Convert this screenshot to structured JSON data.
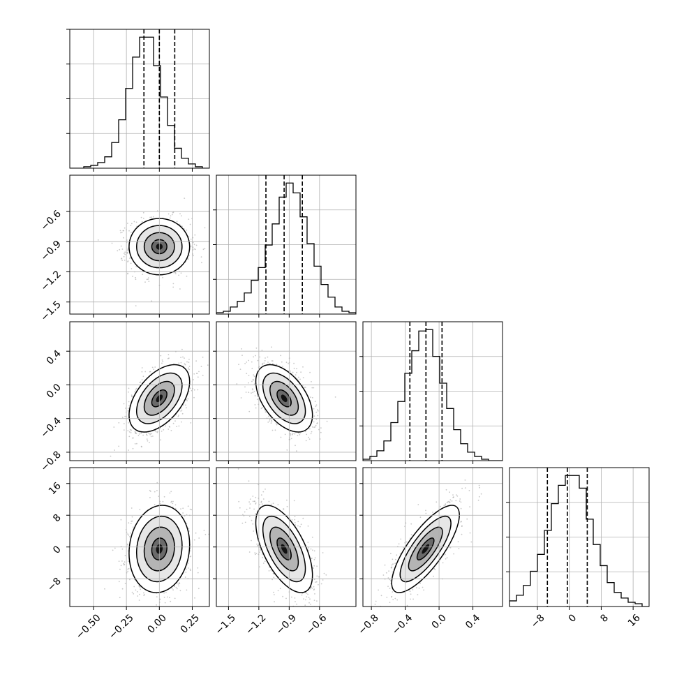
{
  "chart_data": {
    "type": "corner",
    "grid": true,
    "parameters": [
      {
        "index": 0,
        "range": [
          -0.68,
          0.38
        ],
        "ticks": [
          -0.5,
          -0.25,
          0.0,
          0.25
        ],
        "tick_labels": [
          "−0.50",
          "−0.25",
          "0.00",
          "0.25"
        ],
        "quantiles": [
          -0.117,
          0.0,
          0.117
        ]
      },
      {
        "index": 1,
        "range": [
          -1.62,
          -0.24
        ],
        "ticks": [
          -1.5,
          -1.2,
          -0.9,
          -0.6
        ],
        "tick_labels": [
          "−1.5",
          "−1.2",
          "−0.9",
          "−0.6"
        ],
        "quantiles": [
          -1.13,
          -0.95,
          -0.77
        ]
      },
      {
        "index": 2,
        "range": [
          -0.9,
          0.75
        ],
        "ticks": [
          -0.8,
          -0.4,
          0.0,
          0.4
        ],
        "tick_labels": [
          "−0.8",
          "−0.4",
          "0.0",
          "0.4"
        ],
        "quantiles": [
          -0.345,
          -0.155,
          0.035
        ]
      },
      {
        "index": 3,
        "range": [
          -15.0,
          20.0
        ],
        "ticks": [
          -8,
          0,
          8,
          16
        ],
        "tick_labels": [
          "−8",
          "0",
          "8",
          "16"
        ],
        "quantiles": [
          -5.5,
          -0.5,
          4.5
        ]
      }
    ],
    "histograms": [
      {
        "param": 0,
        "bin_edges_range": [
          -0.68,
          0.38
        ],
        "n_bins": 20,
        "counts": [
          0,
          0,
          1,
          2,
          4,
          8,
          18,
          34,
          56,
          78,
          92,
          92,
          72,
          50,
          30,
          14,
          7,
          3,
          1,
          0
        ]
      },
      {
        "param": 1,
        "bin_edges_range": [
          -1.62,
          -0.24
        ],
        "n_bins": 20,
        "counts": [
          1,
          2,
          5,
          9,
          15,
          24,
          33,
          49,
          64,
          83,
          93,
          86,
          69,
          50,
          34,
          21,
          12,
          5,
          2,
          1
        ]
      },
      {
        "param": 2,
        "bin_edges_range": [
          -0.9,
          0.75
        ],
        "n_bins": 20,
        "counts": [
          1,
          3,
          7,
          14,
          27,
          42,
          62,
          78,
          92,
          93,
          74,
          55,
          37,
          22,
          12,
          6,
          3,
          1,
          0,
          0
        ]
      },
      {
        "param": 3,
        "bin_edges_range": [
          -15.0,
          20.0
        ],
        "n_bins": 20,
        "counts": [
          4,
          8,
          15,
          25,
          37,
          54,
          73,
          86,
          93,
          93,
          84,
          62,
          44,
          29,
          17,
          10,
          6,
          3,
          2,
          0
        ]
      }
    ],
    "pairs": [
      {
        "x": 0,
        "y": 1,
        "mean": [
          0.0,
          -0.95
        ],
        "sigma": [
          0.115,
          0.14
        ],
        "corr": 0.0,
        "contour_levels": [
          0.5,
          1.0,
          1.5,
          2.0
        ]
      },
      {
        "x": 0,
        "y": 2,
        "mean": [
          0.0,
          -0.16
        ],
        "sigma": [
          0.115,
          0.2
        ],
        "corr": 0.5,
        "contour_levels": [
          0.5,
          1.0,
          1.5,
          2.0
        ]
      },
      {
        "x": 1,
        "y": 2,
        "mean": [
          -0.95,
          -0.16
        ],
        "sigma": [
          0.14,
          0.2
        ],
        "corr": -0.5,
        "contour_levels": [
          0.5,
          1.0,
          1.5,
          2.0
        ]
      },
      {
        "x": 0,
        "y": 3,
        "mean": [
          0.0,
          -0.5
        ],
        "sigma": [
          0.115,
          5.5
        ],
        "corr": 0.1,
        "contour_levels": [
          0.5,
          1.0,
          1.5,
          2.0
        ]
      },
      {
        "x": 1,
        "y": 3,
        "mean": [
          -0.95,
          -0.5
        ],
        "sigma": [
          0.14,
          5.5
        ],
        "corr": -0.6,
        "contour_levels": [
          0.5,
          1.0,
          1.5,
          2.0
        ]
      },
      {
        "x": 2,
        "y": 3,
        "mean": [
          -0.16,
          -0.5
        ],
        "sigma": [
          0.2,
          5.5
        ],
        "corr": 0.78,
        "contour_levels": [
          0.5,
          1.0,
          1.5,
          2.0
        ]
      }
    ],
    "colors": {
      "line": "#000000",
      "grid": "#b0b0b0",
      "points": "#9a9a9a",
      "hist": "#000000"
    }
  }
}
